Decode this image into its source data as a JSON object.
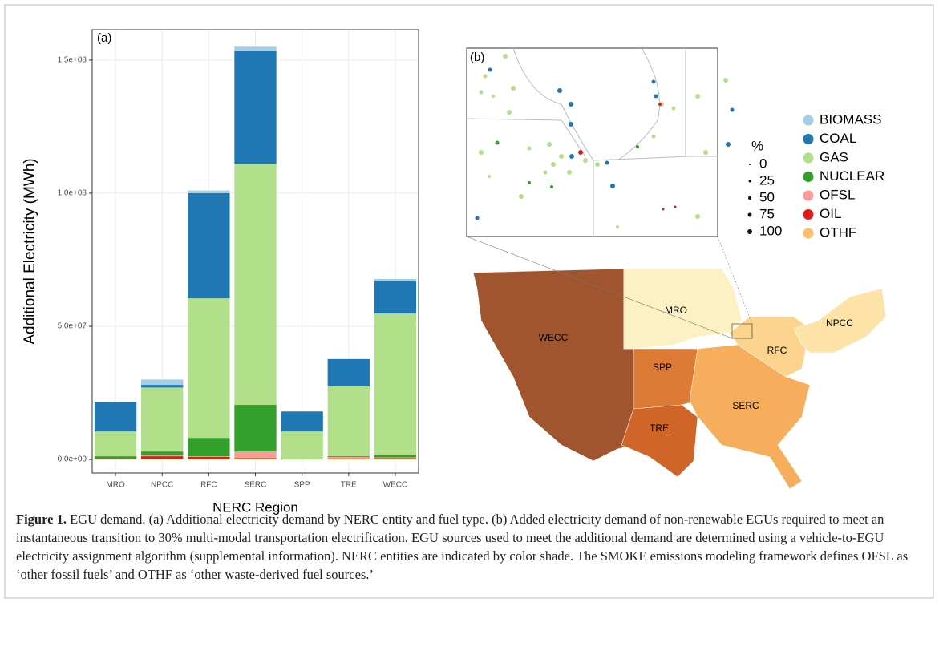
{
  "chart_data": {
    "type": "bar",
    "stacked": true,
    "panel_label": "(a)",
    "x_label": "NERC Region",
    "y_label": "Additional Electricity (MWh)",
    "categories": [
      "MRO",
      "NPCC",
      "RFC",
      "SERC",
      "SPP",
      "TRE",
      "WECC"
    ],
    "series": [
      {
        "name": "BIOMASS",
        "color": "#a6cee3",
        "values": [
          100000,
          2000000,
          1000000,
          1700000,
          0,
          0,
          800000
        ]
      },
      {
        "name": "COAL",
        "color": "#1f78b4",
        "values": [
          11100000,
          1000000,
          39500000,
          42300000,
          7500000,
          10300000,
          12200000
        ]
      },
      {
        "name": "GAS",
        "color": "#b2df8a",
        "values": [
          9300000,
          24000000,
          52400000,
          90500000,
          10100000,
          26200000,
          53000000
        ]
      },
      {
        "name": "NUCLEAR",
        "color": "#33a02c",
        "values": [
          1000000,
          1500000,
          6900000,
          17500000,
          300000,
          300000,
          1000000
        ]
      },
      {
        "name": "OFSL",
        "color": "#fb9a99",
        "values": [
          100000,
          300000,
          200000,
          2500000,
          0,
          500000,
          300000
        ]
      },
      {
        "name": "OIL",
        "color": "#e31a1c",
        "values": [
          100000,
          900000,
          800000,
          200000,
          100000,
          100000,
          200000
        ]
      },
      {
        "name": "OTHF",
        "color": "#fdbf6f",
        "values": [
          0,
          300000,
          200000,
          300000,
          0,
          300000,
          300000
        ]
      }
    ],
    "ylim": [
      -5100000,
      161400000
    ],
    "yticks": [
      {
        "value": 0,
        "label": "0.0e+00"
      },
      {
        "value": 50000000,
        "label": "5.0e+07"
      },
      {
        "value": 100000000,
        "label": "1.0e+08"
      },
      {
        "value": 150000000,
        "label": "1.5e+08"
      }
    ],
    "grid": true,
    "legend_position": "right"
  },
  "map": {
    "panel_label": "(b)",
    "size_legend": {
      "title": "%",
      "values": [
        0,
        25,
        50,
        75,
        100
      ]
    },
    "regions": [
      "WECC",
      "MRO",
      "SPP",
      "TRE",
      "SERC",
      "RFC",
      "NPCC"
    ]
  },
  "caption": {
    "label": "Figure 1.",
    "text": "EGU demand. (a) Additional electricity demand by NERC entity and fuel type. (b) Added electricity demand of non-renewable EGUs required to meet an instantaneous transition to 30% multi-modal transportation electrification. EGU sources used to meet the additional demand are determined using a vehicle-to-EGU electricity assignment algorithm (supplemental information). NERC entities are indicated by color shade. The SMOKE emissions modeling framework defines OFSL as ‘other fossil fuels’ and OTHF as ‘other waste-derived fuel sources.’"
  }
}
